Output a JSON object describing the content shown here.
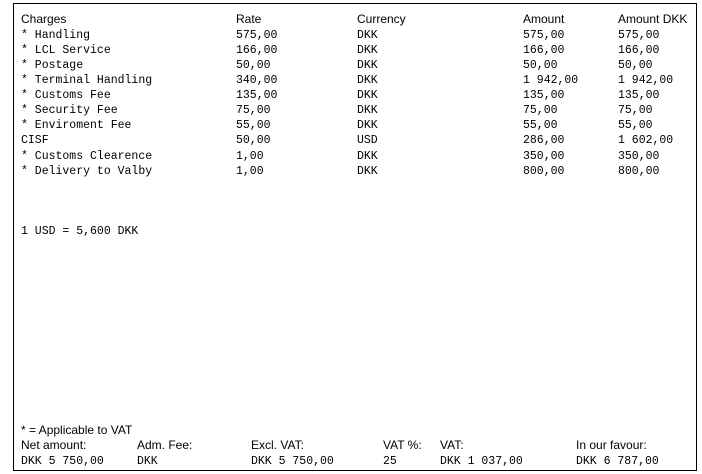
{
  "headers": {
    "charges": "Charges",
    "rate": "Rate",
    "currency": "Currency",
    "amount": "Amount",
    "amount_dkk": "Amount DKK"
  },
  "rows": [
    {
      "charge": "* Handling",
      "rate": "575,00",
      "currency": "DKK",
      "amount": "575,00",
      "amount_dkk": "575,00"
    },
    {
      "charge": "* LCL Service",
      "rate": "166,00",
      "currency": "DKK",
      "amount": "166,00",
      "amount_dkk": "166,00"
    },
    {
      "charge": "* Postage",
      "rate": "50,00",
      "currency": "DKK",
      "amount": "50,00",
      "amount_dkk": "50,00"
    },
    {
      "charge": "* Terminal Handling",
      "rate": "340,00",
      "currency": "DKK",
      "amount": "1 942,00",
      "amount_dkk": "1 942,00"
    },
    {
      "charge": "* Customs Fee",
      "rate": "135,00",
      "currency": "DKK",
      "amount": "135,00",
      "amount_dkk": "135,00"
    },
    {
      "charge": "* Security Fee",
      "rate": "75,00",
      "currency": "DKK",
      "amount": "75,00",
      "amount_dkk": "75,00"
    },
    {
      "charge": "* Enviroment Fee",
      "rate": "55,00",
      "currency": "DKK",
      "amount": "55,00",
      "amount_dkk": "55,00"
    },
    {
      "charge": "CISF",
      "rate": "50,00",
      "currency": "USD",
      "amount": "286,00",
      "amount_dkk": "1 602,00"
    },
    {
      "charge": "* Customs Clearence",
      "rate": "1,00",
      "currency": "DKK",
      "amount": "350,00",
      "amount_dkk": "350,00"
    },
    {
      "charge": "* Delivery to Valby",
      "rate": "1,00",
      "currency": "DKK",
      "amount": "800,00",
      "amount_dkk": "800,00"
    }
  ],
  "exchange_rate": "1 USD = 5,600 DKK",
  "vat_note": "* = Applicable to VAT",
  "footer": {
    "net_amount_label": "Net amount:",
    "net_amount_value": "DKK 5 750,00",
    "adm_fee_label": "Adm. Fee:",
    "adm_fee_value": "DKK",
    "excl_vat_label": "Excl. VAT:",
    "excl_vat_value": "DKK 5 750,00",
    "vat_pct_label": "VAT %:",
    "vat_pct_value": "25",
    "vat_label": "VAT:",
    "vat_value": "DKK 1 037,00",
    "in_our_favour_label": "In our favour:",
    "in_our_favour_value": "DKK 6 787,00"
  }
}
